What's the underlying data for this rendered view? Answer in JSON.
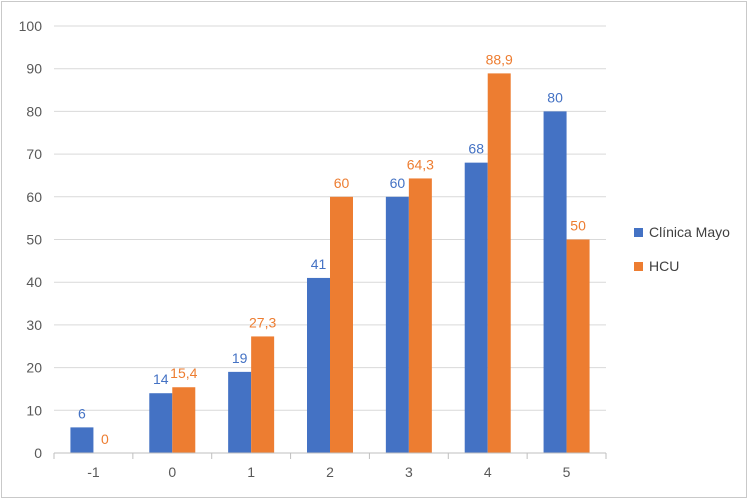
{
  "chart_data": {
    "type": "bar",
    "title": "",
    "xlabel": "",
    "ylabel": "",
    "categories": [
      "-1",
      "0",
      "1",
      "2",
      "3",
      "4",
      "5"
    ],
    "ylim": [
      0,
      100
    ],
    "yticks": [
      "0",
      "10",
      "20",
      "30",
      "40",
      "50",
      "60",
      "70",
      "80",
      "90",
      "100"
    ],
    "grid": true,
    "legend_position": "right",
    "series": [
      {
        "name": "Clínica Mayo",
        "color": "#4472c4",
        "values": [
          6,
          14,
          19,
          41,
          60,
          68,
          80
        ],
        "labels": [
          "6",
          "14",
          "19",
          "41",
          "60",
          "68",
          "80"
        ]
      },
      {
        "name": "HCU",
        "color": "#ed7d31",
        "values": [
          0,
          15.4,
          27.3,
          60,
          64.3,
          88.9,
          50
        ],
        "labels": [
          "0",
          "15,4",
          "27,3",
          "60",
          "64,3",
          "88,9",
          "50"
        ]
      }
    ]
  }
}
